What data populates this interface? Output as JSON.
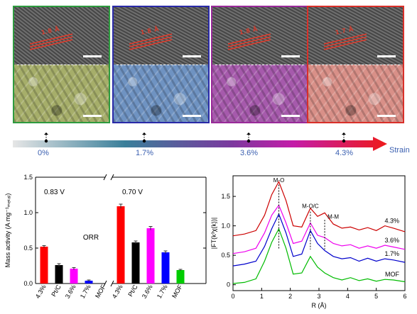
{
  "panels": [
    {
      "strain": "0%",
      "lattice": "1.8 Å",
      "frame_color": "#2e9b3f",
      "sem_color": "#a6ae6a"
    },
    {
      "strain": "1.7%",
      "lattice": "1.8 Å",
      "frame_color": "#2a2aa8",
      "sem_color": "#6f93c2"
    },
    {
      "strain": "3.6%",
      "lattice": "1.8 Å",
      "frame_color": "#9a2a9a",
      "sem_color": "#a65aac"
    },
    {
      "strain": "4.3%",
      "lattice": "1.7 Å",
      "frame_color": "#d9302a",
      "sem_color": "#d99088"
    }
  ],
  "strain_bar": {
    "label": "Strain"
  },
  "bar_chart": {
    "chart_data": {
      "type": "bar",
      "ylabel": "Mass activity (A mg⁻¹ₘₑₜₐₗ)",
      "ylim": [
        0,
        1.5
      ],
      "yticks": [
        "0.0",
        "0.5",
        "1.0",
        "1.5"
      ],
      "annotation": "ORR",
      "groups": [
        {
          "condition": "0.83 V",
          "categories": [
            "4.3%",
            "Pt/C",
            "3.6%",
            "1.7%",
            "MOF"
          ],
          "values": [
            0.52,
            0.26,
            0.21,
            0.04,
            0.0
          ],
          "errors": [
            0.015,
            0.02,
            0.015,
            0.01,
            0.0
          ],
          "colors": [
            "#ff0000",
            "#000000",
            "#ff00ff",
            "#0000ff",
            "#00cc00"
          ]
        },
        {
          "condition": "0.70 V",
          "categories": [
            "4.3%",
            "Pt/C",
            "3.6%",
            "1.7%",
            "MOF"
          ],
          "values": [
            1.09,
            0.58,
            0.78,
            0.44,
            0.19
          ],
          "errors": [
            0.03,
            0.02,
            0.025,
            0.02,
            0.01
          ],
          "colors": [
            "#ff0000",
            "#000000",
            "#ff00ff",
            "#0000ff",
            "#00cc00"
          ]
        }
      ]
    }
  },
  "line_chart": {
    "chart_data": {
      "type": "line",
      "xlabel": "R (Å)",
      "ylabel": "|FT(k³χ(k))|",
      "xlim": [
        0,
        6
      ],
      "ylim": [
        -0.1,
        1.85
      ],
      "xticks": [
        "0",
        "1",
        "2",
        "3",
        "4",
        "5",
        "6"
      ],
      "yticks": [
        "0",
        "0.5",
        "1.0",
        "1.5"
      ],
      "annotations": [
        "M-O",
        "M-O/C",
        "M-M"
      ],
      "series": [
        {
          "name": "4.3%",
          "color": "#cc0000",
          "offset": 0.78,
          "x": [
            0,
            0.4,
            0.8,
            1.1,
            1.35,
            1.6,
            1.85,
            2.1,
            2.4,
            2.7,
            2.95,
            3.2,
            3.5,
            3.8,
            4.1,
            4.4,
            4.7,
            5.0,
            5.3,
            5.6,
            6.0
          ],
          "y": [
            0.05,
            0.08,
            0.14,
            0.4,
            0.75,
            0.97,
            0.65,
            0.22,
            0.2,
            0.52,
            0.38,
            0.44,
            0.25,
            0.18,
            0.2,
            0.15,
            0.19,
            0.14,
            0.22,
            0.18,
            0.12
          ]
        },
        {
          "name": "3.6%",
          "color": "#ee00ee",
          "offset": 0.5,
          "x": [
            0,
            0.4,
            0.8,
            1.1,
            1.35,
            1.6,
            1.85,
            2.1,
            2.4,
            2.7,
            2.95,
            3.2,
            3.5,
            3.8,
            4.1,
            4.4,
            4.7,
            5.0,
            5.3,
            5.6,
            6.0
          ],
          "y": [
            0.03,
            0.06,
            0.12,
            0.38,
            0.68,
            0.85,
            0.55,
            0.2,
            0.24,
            0.55,
            0.34,
            0.3,
            0.2,
            0.16,
            0.18,
            0.12,
            0.16,
            0.12,
            0.17,
            0.14,
            0.1
          ]
        },
        {
          "name": "1.7%",
          "color": "#0000cc",
          "offset": 0.3,
          "x": [
            0,
            0.4,
            0.8,
            1.1,
            1.35,
            1.6,
            1.85,
            2.1,
            2.4,
            2.7,
            2.95,
            3.2,
            3.5,
            3.8,
            4.1,
            4.4,
            4.7,
            5.0,
            5.3,
            5.6,
            6.0
          ],
          "y": [
            0.02,
            0.05,
            0.1,
            0.35,
            0.65,
            0.9,
            0.58,
            0.18,
            0.22,
            0.62,
            0.4,
            0.28,
            0.18,
            0.14,
            0.16,
            0.1,
            0.15,
            0.1,
            0.14,
            0.12,
            0.08
          ]
        },
        {
          "name": "MOF",
          "color": "#00bb00",
          "offset": 0.0,
          "x": [
            0,
            0.4,
            0.8,
            1.1,
            1.35,
            1.6,
            1.85,
            2.1,
            2.4,
            2.7,
            2.95,
            3.2,
            3.5,
            3.8,
            4.1,
            4.4,
            4.7,
            5.0,
            5.3,
            5.6,
            6.0
          ],
          "y": [
            0.02,
            0.04,
            0.1,
            0.4,
            0.72,
            0.95,
            0.62,
            0.18,
            0.2,
            0.48,
            0.3,
            0.2,
            0.12,
            0.08,
            0.12,
            0.07,
            0.1,
            0.06,
            0.09,
            0.08,
            0.05
          ]
        }
      ]
    }
  }
}
